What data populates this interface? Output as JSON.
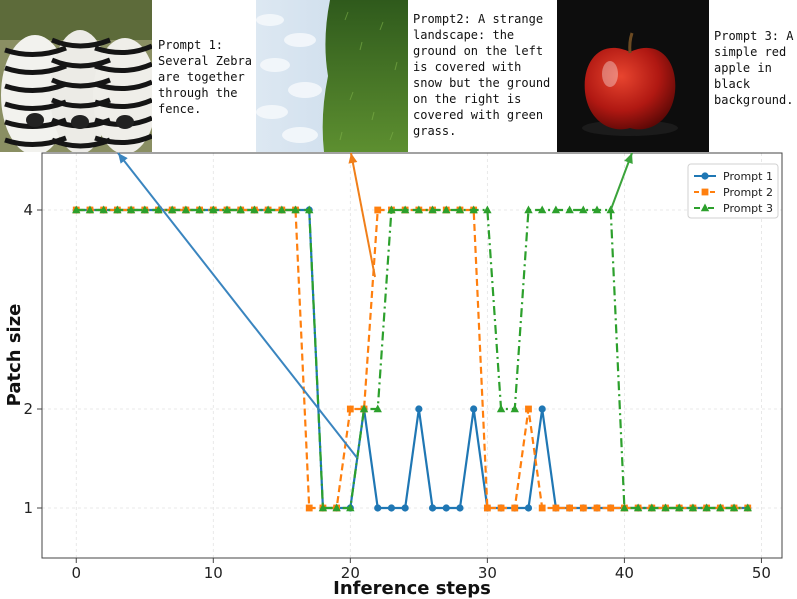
{
  "chart_data": {
    "type": "line",
    "xlabel": "Inference steps",
    "ylabel": "Patch size",
    "xlim": [
      -2.5,
      51.5
    ],
    "ylim": [
      0.5,
      5.5
    ],
    "x_ticks": [
      0,
      10,
      20,
      30,
      40,
      50
    ],
    "y_ticks": [
      1,
      2,
      4
    ],
    "y_scale": "patch-size levels",
    "grid": true,
    "legend_position": "top-right",
    "x": [
      0,
      1,
      2,
      3,
      4,
      5,
      6,
      7,
      8,
      9,
      10,
      11,
      12,
      13,
      14,
      15,
      16,
      17,
      18,
      19,
      20,
      21,
      22,
      23,
      24,
      25,
      26,
      27,
      28,
      29,
      30,
      31,
      32,
      33,
      34,
      35,
      36,
      37,
      38,
      39,
      40,
      41,
      42,
      43,
      44,
      45,
      46,
      47,
      48,
      49
    ],
    "series": [
      {
        "name": "Prompt 1",
        "color": "#1f77b4",
        "linestyle": "solid",
        "marker": "circle",
        "values": [
          4,
          4,
          4,
          4,
          4,
          4,
          4,
          4,
          4,
          4,
          4,
          4,
          4,
          4,
          4,
          4,
          4,
          4,
          1,
          1,
          1,
          2,
          1,
          1,
          1,
          2,
          1,
          1,
          1,
          2,
          1,
          1,
          1,
          1,
          2,
          1,
          1,
          1,
          1,
          1,
          1,
          1,
          1,
          1,
          1,
          1,
          1,
          1,
          1,
          1
        ]
      },
      {
        "name": "Prompt 2",
        "color": "#ff7f0e",
        "linestyle": "dashed",
        "marker": "square",
        "values": [
          4,
          4,
          4,
          4,
          4,
          4,
          4,
          4,
          4,
          4,
          4,
          4,
          4,
          4,
          4,
          4,
          4,
          1,
          1,
          1,
          2,
          2,
          4,
          4,
          4,
          4,
          4,
          4,
          4,
          4,
          1,
          1,
          1,
          2,
          1,
          1,
          1,
          1,
          1,
          1,
          1,
          1,
          1,
          1,
          1,
          1,
          1,
          1,
          1,
          1
        ]
      },
      {
        "name": "Prompt 3",
        "color": "#2ca02c",
        "linestyle": "dashdot",
        "marker": "triangle",
        "values": [
          4,
          4,
          4,
          4,
          4,
          4,
          4,
          4,
          4,
          4,
          4,
          4,
          4,
          4,
          4,
          4,
          4,
          4,
          1,
          1,
          1,
          2,
          2,
          4,
          4,
          4,
          4,
          4,
          4,
          4,
          4,
          2,
          2,
          4,
          4,
          4,
          4,
          4,
          4,
          4,
          1,
          1,
          1,
          1,
          1,
          1,
          1,
          1,
          1,
          1
        ]
      }
    ],
    "annotations": [
      {
        "text": "Prompt 1: Several Zebra are together through the fence.",
        "image": "zebras",
        "arrow_target": [
          20.5,
          1.5
        ]
      },
      {
        "text": "Prompt2: A strange landscape: the ground on the left is covered with snow but the ground on the right is covered with green grass.",
        "image": "snow-grass",
        "arrow_target": [
          21.8,
          3.3
        ]
      },
      {
        "text": "Prompt 3: A simple red apple in black background.",
        "image": "red-apple",
        "arrow_target": [
          39,
          4
        ]
      }
    ]
  },
  "prompts": [
    {
      "lines": [
        "Prompt 1:",
        "Several Zebra",
        "are together",
        "through the",
        "fence."
      ]
    },
    {
      "lines": [
        "Prompt2: A strange",
        "landscape: the",
        "ground on the left",
        "is covered with",
        "snow but the ground",
        "on the right is",
        "covered with green",
        "grass."
      ]
    },
    {
      "lines": [
        "Prompt 3: A",
        "simple red",
        "apple in",
        "black",
        "background."
      ]
    }
  ]
}
